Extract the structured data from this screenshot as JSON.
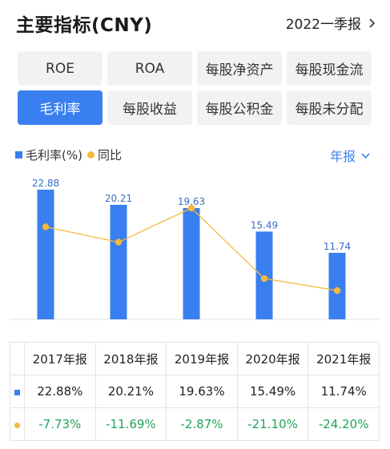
{
  "header": {
    "title": "主要指标(CNY)",
    "period": "2022一季报"
  },
  "tabs": [
    {
      "label": "ROE",
      "active": false
    },
    {
      "label": "ROA",
      "active": false
    },
    {
      "label": "每股净资产",
      "active": false
    },
    {
      "label": "每股现金流",
      "active": false
    },
    {
      "label": "毛利率",
      "active": true
    },
    {
      "label": "每股收益",
      "active": false
    },
    {
      "label": "每股公积金",
      "active": false
    },
    {
      "label": "每股未分配",
      "active": false
    }
  ],
  "legend": {
    "bar_label": "毛利率(%)",
    "line_label": "同比",
    "frequency": "年报"
  },
  "colors": {
    "accent": "#3a7ff0",
    "line": "#f5b93c",
    "negative": "#1fa45b"
  },
  "chart_data": {
    "type": "bar",
    "categories": [
      "2017年报",
      "2018年报",
      "2019年报",
      "2020年报",
      "2021年报"
    ],
    "series": [
      {
        "name": "毛利率(%)",
        "type": "bar",
        "values": [
          22.88,
          20.21,
          19.63,
          15.49,
          11.74
        ]
      },
      {
        "name": "同比",
        "type": "line",
        "values": [
          -7.73,
          -11.69,
          -2.87,
          -21.1,
          -24.2
        ]
      }
    ]
  },
  "table": {
    "headers": [
      "2017年报",
      "2018年报",
      "2019年报",
      "2020年报",
      "2021年报"
    ],
    "bar_row": [
      "22.88%",
      "20.21%",
      "19.63%",
      "15.49%",
      "11.74%"
    ],
    "yoy_row": [
      "-7.73%",
      "-11.69%",
      "-2.87%",
      "-21.10%",
      "-24.20%"
    ]
  }
}
